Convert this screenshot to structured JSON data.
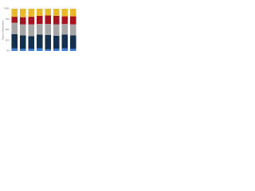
{
  "chart_data": {
    "type": "stacked_bar_percent",
    "y_label": "Share of respondents",
    "ylim": [
      0,
      100
    ],
    "yticks": [
      {
        "value": 0,
        "label": "0%"
      },
      {
        "value": 25,
        "label": "25%"
      },
      {
        "value": 50,
        "label": "50%"
      },
      {
        "value": 75,
        "label": "75%"
      },
      {
        "value": 100,
        "label": "100%"
      }
    ],
    "grid": true,
    "series": [
      {
        "color": "#3a7bd5",
        "values": [
          6,
          5,
          5,
          6,
          4,
          5,
          6,
          5
        ]
      },
      {
        "color": "#14304f",
        "values": [
          34,
          32,
          30,
          33,
          34,
          31,
          33,
          32
        ]
      },
      {
        "color": "#a6a6a6",
        "values": [
          27,
          26,
          28,
          25,
          26,
          27,
          25,
          26
        ]
      },
      {
        "color": "#a8111e",
        "values": [
          14,
          17,
          18,
          19,
          20,
          20,
          18,
          19
        ]
      },
      {
        "color": "#e8b92c",
        "values": [
          19,
          20,
          19,
          17,
          16,
          17,
          18,
          18
        ]
      }
    ]
  }
}
